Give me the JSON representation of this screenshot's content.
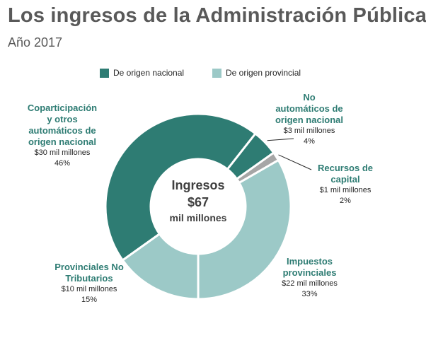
{
  "title": "Los ingresos de la Administración Pública",
  "subtitle": "Año 2017",
  "legend": [
    {
      "label": "De origen nacional",
      "color": "#2e7c73"
    },
    {
      "label": "De origen provincial",
      "color": "#9cc9c7"
    }
  ],
  "center": {
    "line1": "Ingresos",
    "line2": "$67",
    "line3": "mil millones"
  },
  "chart_data": {
    "type": "pie",
    "title": "Los ingresos de la Administración Pública",
    "subtitle": "Año 2017",
    "total_label": "Ingresos $67 mil millones",
    "legend_position": "top",
    "slices": [
      {
        "name": [
          "Coparticipación",
          "y otros",
          "automáticos de",
          "origen nacional"
        ],
        "amount_label": "$30 mil millones",
        "percent_label": "46%",
        "amount": 30,
        "percent": 46,
        "color": "#2e7c73"
      },
      {
        "name": [
          "No",
          "automáticos de",
          "origen nacional"
        ],
        "amount_label": "$3 mil millones",
        "percent_label": "4%",
        "amount": 3,
        "percent": 4,
        "color": "#2e7c73"
      },
      {
        "name": [
          "Recursos de",
          "capital"
        ],
        "amount_label": "$1 mil millones",
        "percent_label": "2%",
        "amount": 1,
        "percent": 2,
        "color": "#a6a6a6"
      },
      {
        "name": [
          "Impuestos",
          "provinciales"
        ],
        "amount_label": "$22 mil millones",
        "percent_label": "33%",
        "amount": 22,
        "percent": 33,
        "color": "#9cc9c7"
      },
      {
        "name": [
          "Provinciales No",
          "Tributarios"
        ],
        "amount_label": "$10 mil millones",
        "percent_label": "15%",
        "amount": 10,
        "percent": 15,
        "color": "#9cc9c7"
      }
    ]
  }
}
